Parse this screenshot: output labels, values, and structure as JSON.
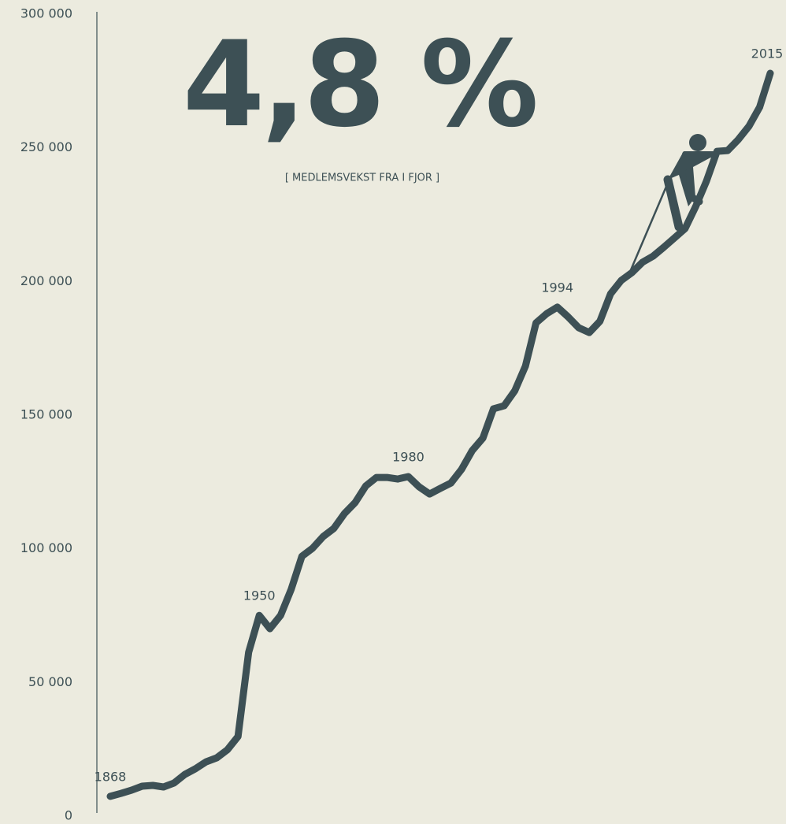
{
  "chart_data": {
    "type": "line",
    "title": "4,8 %",
    "subtitle": "[ MEDLEMSVEKST FRA I FJOR ]",
    "categories": [
      "1868",
      null,
      null,
      null,
      null,
      null,
      null,
      null,
      null,
      null,
      null,
      null,
      null,
      null,
      "1950",
      null,
      null,
      null,
      null,
      null,
      null,
      null,
      null,
      null,
      null,
      null,
      null,
      null,
      "1980",
      null,
      null,
      null,
      null,
      null,
      null,
      null,
      null,
      null,
      null,
      null,
      null,
      null,
      "1994",
      null,
      null,
      null,
      null,
      null,
      null,
      null,
      null,
      null,
      null,
      null,
      null,
      null,
      null,
      null,
      null,
      null,
      null,
      null,
      "2015"
    ],
    "series": [
      {
        "name": null,
        "color": "#3d5055",
        "values": [
          7400,
          8500,
          9700,
          11200,
          11500,
          10900,
          12400,
          15600,
          17700,
          20300,
          21800,
          24800,
          29800,
          61300,
          75100,
          70100,
          75100,
          84900,
          97200,
          100200,
          104600,
          107600,
          113200,
          117300,
          123500,
          126700,
          126700,
          126100,
          127000,
          123200,
          120500,
          122600,
          124600,
          129700,
          136700,
          141400,
          152400,
          153500,
          159100,
          168300,
          184500,
          188000,
          190400,
          186800,
          182700,
          180900,
          185100,
          195400,
          200400,
          203300,
          207200,
          209500,
          212800,
          216300,
          219800,
          228100,
          237500,
          248700,
          249000,
          253100,
          258100,
          265200,
          277900
        ]
      }
    ],
    "ylim": [
      0,
      300000
    ],
    "yticks": [
      {
        "value": 0,
        "label": "0"
      },
      {
        "value": 50000,
        "label": "50 000"
      },
      {
        "value": 100000,
        "label": "100 000"
      },
      {
        "value": 150000,
        "label": "150 000"
      },
      {
        "value": 200000,
        "label": "200 000"
      },
      {
        "value": 250000,
        "label": "250 000"
      },
      {
        "value": 300000,
        "label": "300 000"
      }
    ],
    "grid": false
  }
}
